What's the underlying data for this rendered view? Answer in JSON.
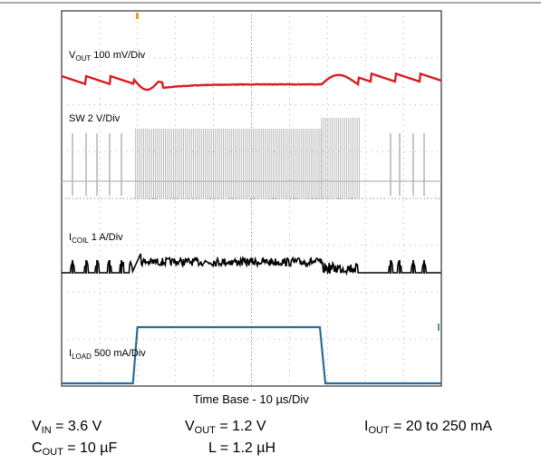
{
  "chart_data": {
    "type": "line",
    "title": "",
    "xlabel": "Time Base - 10 µs/Div",
    "ylabel": "",
    "time_per_div_us": 10,
    "x_divisions": 10,
    "y_divisions": 8,
    "grid": true,
    "traces": [
      {
        "name_main": "V",
        "name_sub": "OUT",
        "scale": "100 mV/Div",
        "color": "#d81e1e",
        "description": "ripple at light load, dip and recovery at load step up, overshoot at load step down"
      },
      {
        "name_main": "SW",
        "name_sub": "",
        "scale": "2 V/Div",
        "color": "#b8b8b8",
        "description": "sparse switching pulses at light load, continuous switching at heavy load"
      },
      {
        "name_main": "I",
        "name_sub": "COIL",
        "scale": "1 A/Div",
        "color": "#000000",
        "description": "pulsed inductor current at light load, continuous ripple at heavy load"
      },
      {
        "name_main": "I",
        "name_sub": "LOAD",
        "scale": "500 mA/Div",
        "color": "#2a6e96",
        "description": "load step 20 mA to 250 mA and back"
      }
    ],
    "load_step": {
      "low_mA": 20,
      "high_mA": 250,
      "rise_us": 19.5,
      "fall_us": 68.5
    }
  },
  "conditions": {
    "vin": {
      "main": "V",
      "sub": "IN",
      "value": " = 3.6 V"
    },
    "vout": {
      "main": "V",
      "sub": "OUT",
      "value": " = 1.2 V"
    },
    "iout": {
      "main": "I",
      "sub": "OUT",
      "value": " = 20 to 250 mA"
    },
    "cout": {
      "main": "C",
      "sub": "OUT",
      "value": " = 10 µF"
    },
    "inductor": {
      "text": "L = 1.2 µH"
    }
  }
}
